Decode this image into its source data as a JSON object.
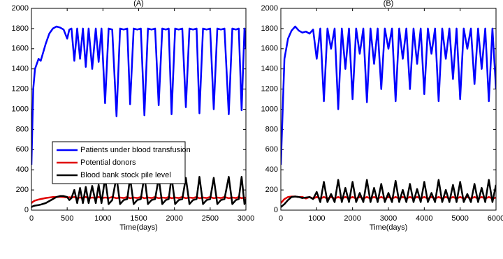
{
  "chart_data": [
    {
      "type": "line",
      "title": "(A)",
      "xlabel": "Time(days)",
      "x": [
        0,
        25,
        50,
        100,
        130,
        200,
        250,
        300,
        350,
        400,
        450,
        500,
        530,
        560,
        600,
        640,
        680,
        720,
        760,
        800,
        850,
        900,
        940,
        980,
        1030,
        1080,
        1130,
        1190,
        1240,
        1290,
        1340,
        1380,
        1430,
        1480,
        1530,
        1580,
        1630,
        1680,
        1730,
        1780,
        1830,
        1880,
        1920,
        1960,
        2010,
        2060,
        2110,
        2160,
        2210,
        2260,
        2310,
        2350,
        2400,
        2450,
        2500,
        2550,
        2600,
        2650,
        2700,
        2760,
        2810,
        2860,
        2900,
        2940,
        2980,
        3000
      ],
      "series": [
        {
          "name": "Patients under blood transfusion",
          "color": "#0000ff",
          "values": [
            450,
            1200,
            1400,
            1500,
            1480,
            1650,
            1750,
            1800,
            1820,
            1810,
            1790,
            1700,
            1790,
            1800,
            1480,
            1800,
            1500,
            1800,
            1420,
            1800,
            1400,
            1800,
            1470,
            1800,
            1060,
            1800,
            1790,
            930,
            1800,
            1790,
            1800,
            1050,
            1800,
            1790,
            1800,
            940,
            1800,
            1790,
            1800,
            1040,
            1800,
            1790,
            1800,
            950,
            1800,
            1790,
            1800,
            1020,
            1800,
            1790,
            1800,
            960,
            1800,
            1790,
            1800,
            1000,
            1800,
            1790,
            1800,
            950,
            1800,
            1790,
            1800,
            990,
            1800,
            1600
          ]
        },
        {
          "name": "Potential donors",
          "color": "#e00000",
          "values": [
            70,
            85,
            95,
            105,
            110,
            120,
            125,
            130,
            130,
            132,
            130,
            125,
            128,
            125,
            130,
            118,
            125,
            120,
            130,
            118,
            125,
            120,
            130,
            118,
            125,
            120,
            130,
            118,
            125,
            120,
            130,
            118,
            125,
            120,
            130,
            118,
            125,
            120,
            130,
            118,
            125,
            120,
            130,
            118,
            125,
            120,
            130,
            118,
            125,
            120,
            130,
            118,
            125,
            120,
            130,
            118,
            125,
            120,
            130,
            118,
            125,
            120,
            130,
            118,
            125,
            120
          ]
        },
        {
          "name": "Blood bank stock pile level",
          "color": "#000000",
          "values": [
            30,
            40,
            45,
            50,
            55,
            70,
            90,
            110,
            130,
            140,
            140,
            130,
            100,
            120,
            200,
            70,
            220,
            70,
            230,
            70,
            240,
            70,
            250,
            70,
            320,
            60,
            100,
            330,
            60,
            100,
            110,
            320,
            60,
            100,
            110,
            340,
            60,
            100,
            110,
            320,
            60,
            100,
            110,
            330,
            60,
            100,
            110,
            320,
            60,
            100,
            110,
            330,
            60,
            100,
            110,
            320,
            60,
            100,
            110,
            330,
            60,
            100,
            110,
            330,
            60,
            110
          ]
        }
      ],
      "xlim": [
        0,
        3000
      ],
      "xticks": [
        0,
        500,
        1000,
        1500,
        2000,
        2500,
        3000
      ],
      "ylim": [
        0,
        2000
      ],
      "yticks": [
        0,
        200,
        400,
        600,
        800,
        1000,
        1200,
        1400,
        1600,
        1800,
        2000
      ],
      "legend": "lower left"
    },
    {
      "type": "line",
      "title": "(B)",
      "xlabel": "Time(days)",
      "x": [
        0,
        100,
        200,
        300,
        400,
        500,
        600,
        700,
        800,
        900,
        1000,
        1100,
        1200,
        1300,
        1400,
        1500,
        1600,
        1700,
        1800,
        1900,
        2000,
        2100,
        2200,
        2300,
        2400,
        2500,
        2600,
        2700,
        2800,
        2900,
        3000,
        3100,
        3200,
        3300,
        3400,
        3500,
        3600,
        3700,
        3800,
        3900,
        4000,
        4100,
        4200,
        4300,
        4400,
        4500,
        4600,
        4700,
        4800,
        4900,
        5000,
        5100,
        5200,
        5300,
        5400,
        5500,
        5600,
        5700,
        5800,
        5900,
        6000
      ],
      "series": [
        {
          "color": "#0000ff",
          "values": [
            450,
            1500,
            1700,
            1780,
            1820,
            1780,
            1760,
            1770,
            1750,
            1790,
            1500,
            1800,
            1080,
            1800,
            1600,
            1800,
            1000,
            1800,
            1400,
            1800,
            1100,
            1800,
            1550,
            1800,
            1070,
            1800,
            1450,
            1800,
            1200,
            1800,
            1600,
            1800,
            1080,
            1800,
            1500,
            1800,
            1200,
            1800,
            1450,
            1800,
            1150,
            1800,
            1550,
            1800,
            1080,
            1800,
            1500,
            1800,
            1300,
            1800,
            1100,
            1800,
            1600,
            1800,
            1250,
            1800,
            1400,
            1800,
            1080,
            1800,
            1200
          ]
        },
        {
          "color": "#e00000",
          "values": [
            70,
            110,
            130,
            135,
            135,
            130,
            130,
            115,
            130,
            115,
            130,
            115,
            130,
            115,
            130,
            115,
            130,
            115,
            130,
            115,
            130,
            115,
            130,
            115,
            130,
            115,
            130,
            115,
            130,
            115,
            130,
            115,
            130,
            115,
            130,
            115,
            130,
            115,
            130,
            115,
            130,
            115,
            130,
            115,
            130,
            115,
            130,
            115,
            130,
            115,
            130,
            115,
            130,
            115,
            130,
            115,
            130,
            115,
            130,
            115,
            125
          ]
        },
        {
          "color": "#000000",
          "values": [
            30,
            60,
            100,
            130,
            135,
            130,
            120,
            125,
            130,
            110,
            180,
            80,
            280,
            80,
            160,
            80,
            300,
            80,
            220,
            80,
            280,
            80,
            170,
            80,
            300,
            80,
            220,
            80,
            260,
            80,
            170,
            80,
            290,
            80,
            200,
            80,
            260,
            80,
            210,
            80,
            280,
            80,
            170,
            80,
            300,
            80,
            200,
            80,
            250,
            80,
            280,
            80,
            160,
            80,
            260,
            80,
            220,
            80,
            300,
            80,
            250
          ]
        }
      ],
      "xlim": [
        0,
        6000
      ],
      "xticks": [
        0,
        1000,
        2000,
        3000,
        4000,
        5000,
        6000
      ],
      "ylim": [
        0,
        2000
      ],
      "yticks": [
        0,
        200,
        400,
        600,
        800,
        1000,
        1200,
        1400,
        1600,
        1800,
        2000
      ]
    }
  ]
}
